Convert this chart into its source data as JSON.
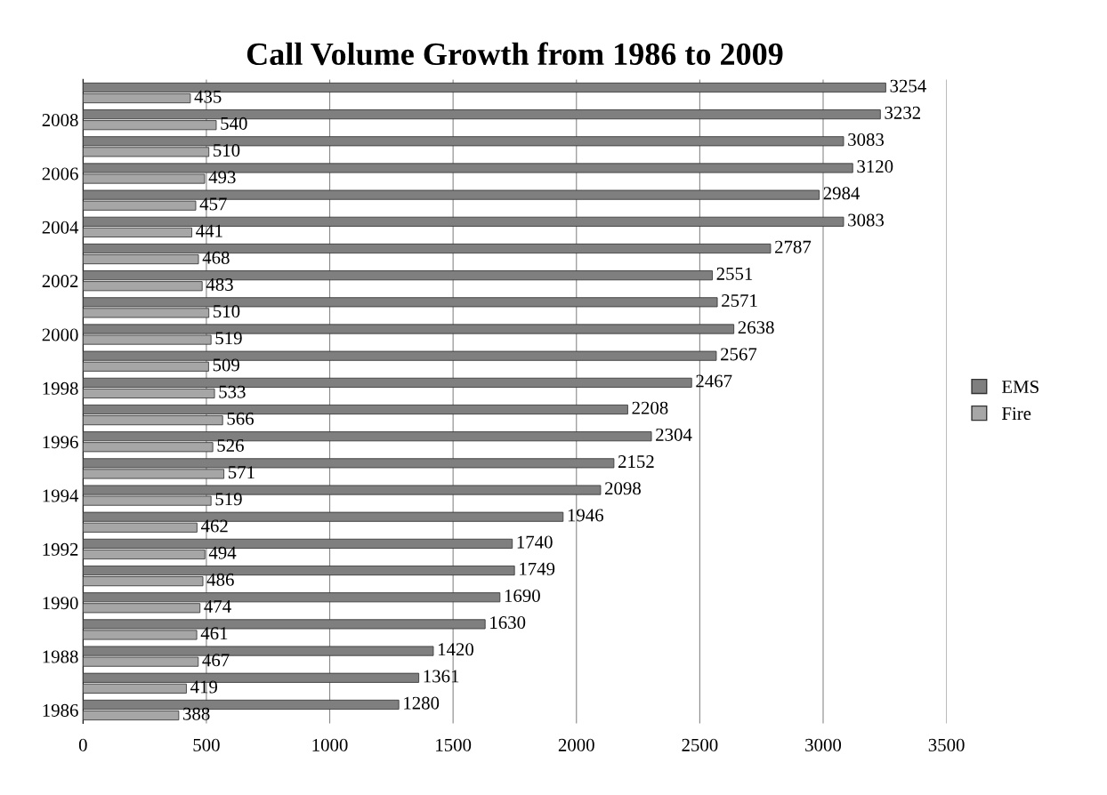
{
  "chart_data": {
    "type": "bar",
    "orientation": "horizontal",
    "title": "Call Volume Growth from 1986 to 2009",
    "categories": [
      null,
      "2008",
      null,
      "2006",
      null,
      "2004",
      null,
      "2002",
      null,
      "2000",
      null,
      "1998",
      null,
      "1996",
      null,
      "1994",
      null,
      "1992",
      null,
      "1990",
      null,
      "1988",
      null,
      "1986"
    ],
    "series": [
      {
        "name": "EMS",
        "color": "#7f7f7f",
        "values": [
          3254,
          3232,
          3083,
          3120,
          2984,
          3083,
          2787,
          2551,
          2571,
          2638,
          2567,
          2467,
          2208,
          2304,
          2152,
          2098,
          1946,
          1740,
          1749,
          1690,
          1630,
          1420,
          1361,
          1280
        ]
      },
      {
        "name": "Fire",
        "color": "#a6a6a6",
        "values": [
          435,
          540,
          510,
          493,
          457,
          441,
          468,
          483,
          510,
          519,
          509,
          533,
          566,
          526,
          571,
          519,
          462,
          494,
          486,
          474,
          461,
          467,
          419,
          388
        ]
      }
    ],
    "xlim": [
      0,
      3500
    ],
    "xticks": [
      0,
      500,
      1000,
      1500,
      2000,
      2500,
      3000,
      3500
    ],
    "grid": "x",
    "legend": "right",
    "data_labels": true
  }
}
